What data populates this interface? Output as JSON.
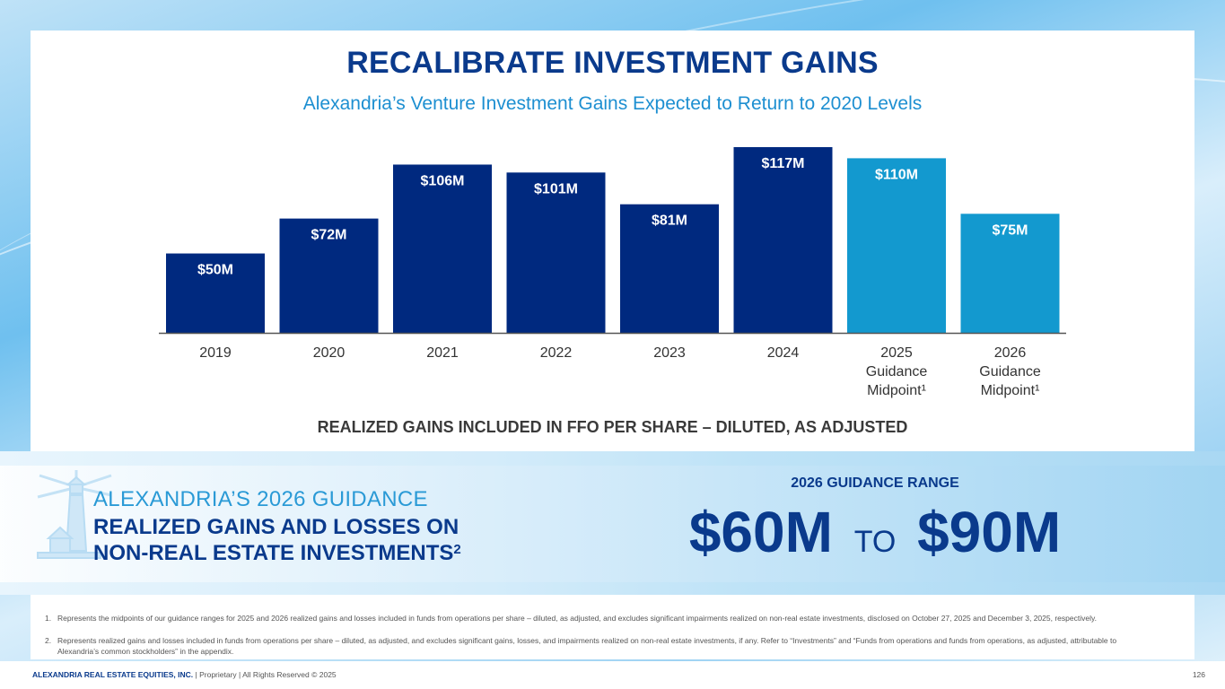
{
  "title": "RECALIBRATE INVESTMENT GAINS",
  "subtitle": "Alexandria’s Venture Investment Gains Expected to Return to 2020 Levels",
  "chart_data": {
    "type": "bar",
    "title": "",
    "xlabel": "REALIZED GAINS INCLUDED IN FFO PER SHARE – DILUTED, AS ADJUSTED",
    "ylabel": "",
    "ylim": [
      0,
      125
    ],
    "grid": false,
    "categories": [
      [
        "2019"
      ],
      [
        "2020"
      ],
      [
        "2021"
      ],
      [
        "2022"
      ],
      [
        "2023"
      ],
      [
        "2024"
      ],
      [
        "2025",
        "Guidance",
        "Midpoint¹"
      ],
      [
        "2026",
        "Guidance",
        "Midpoint¹"
      ]
    ],
    "values": [
      50,
      72,
      106,
      101,
      81,
      117,
      110,
      75
    ],
    "labels": [
      "$50M",
      "$72M",
      "$106M",
      "$101M",
      "$81M",
      "$117M",
      "$110M",
      "$75M"
    ],
    "colors": [
      "#00297f",
      "#00297f",
      "#00297f",
      "#00297f",
      "#00297f",
      "#00297f",
      "#1399cf",
      "#1399cf"
    ]
  },
  "guidance": {
    "line1": "ALEXANDRIA’S 2026 GUIDANCE",
    "line2": "REALIZED GAINS AND LOSSES ON",
    "line3": "NON-REAL ESTATE INVESTMENTS",
    "line3_sup": "2",
    "range_label": "2026 GUIDANCE RANGE",
    "range_low": "$60M",
    "range_to": "TO",
    "range_high": "$90M"
  },
  "footnotes": [
    {
      "num": "1.",
      "text": "Represents the midpoints of our guidance ranges for 2025 and 2026 realized gains and losses included in funds from operations per share – diluted, as adjusted, and excludes significant impairments realized on non-real estate investments, disclosed on October 27, 2025 and December 3, 2025, respectively."
    },
    {
      "num": "2.",
      "text": "Represents realized gains and losses included in funds from operations per share – diluted, as adjusted, and excludes significant gains, losses, and impairments realized on non-real estate investments, if any. Refer to “Investments” and “Funds from operations and funds from operations, as adjusted, attributable to Alexandria’s common stockholders” in the appendix."
    }
  ],
  "footer": {
    "company": "ALEXANDRIA REAL ESTATE EQUITIES, INC.",
    "rights": " | Proprietary | All Rights Reserved © 2025",
    "page": "126"
  }
}
